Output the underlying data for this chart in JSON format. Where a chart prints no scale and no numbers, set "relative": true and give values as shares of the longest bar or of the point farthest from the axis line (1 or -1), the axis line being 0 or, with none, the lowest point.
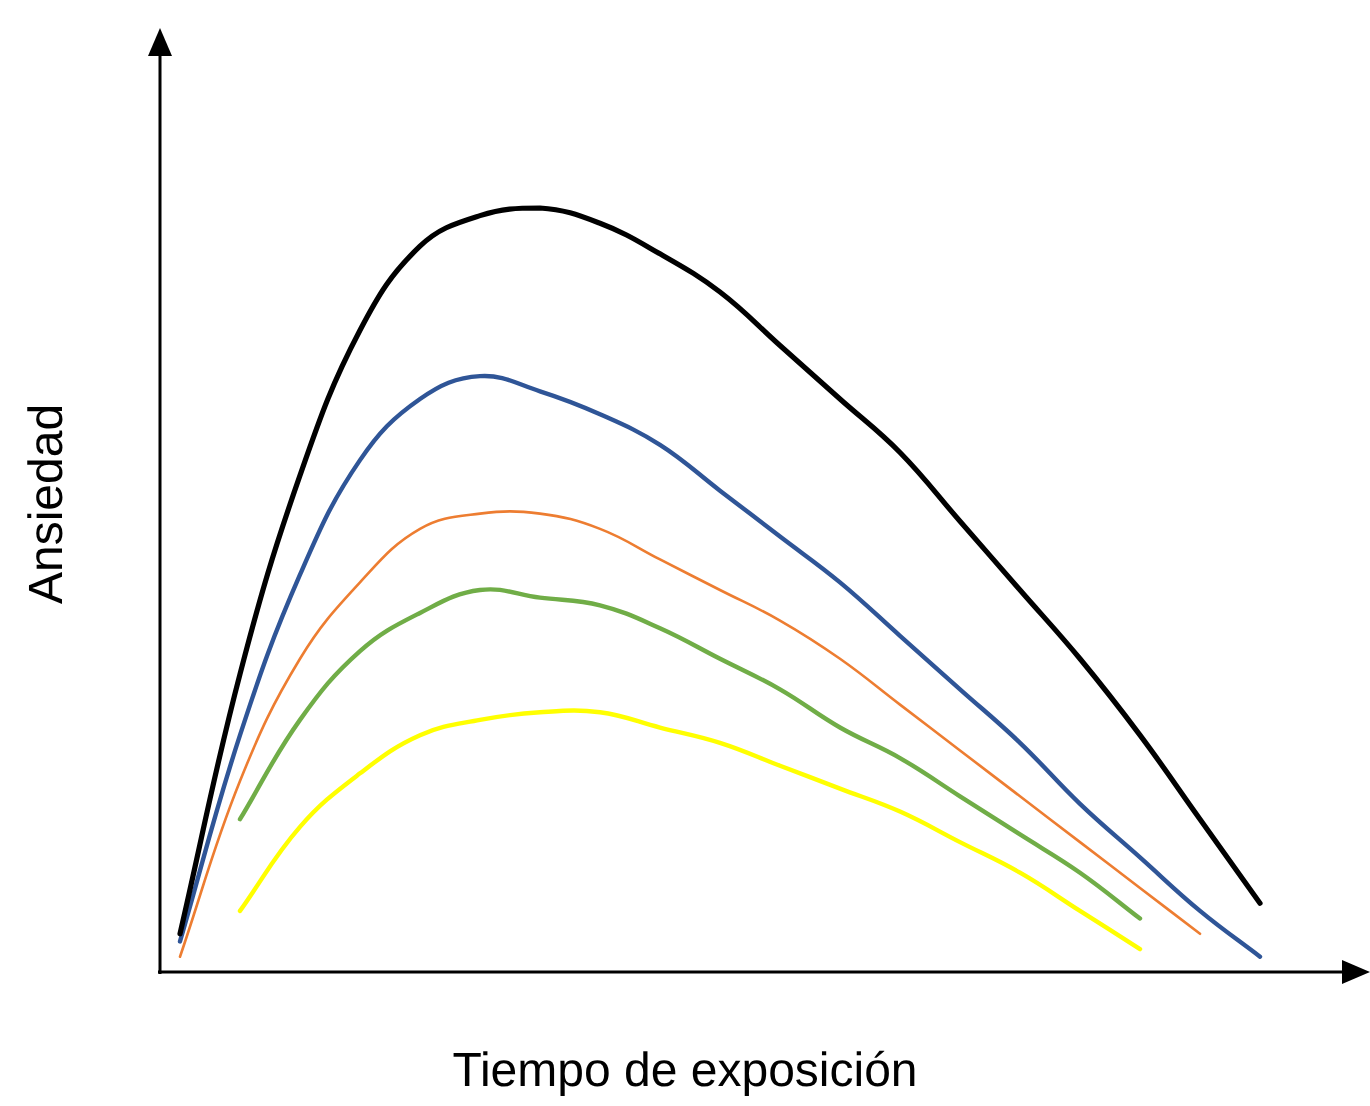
{
  "chart_data": {
    "type": "line",
    "relative": true,
    "xlabel": "Tiempo de exposición",
    "ylabel": "Ansiedad",
    "legend": false,
    "marker": "none",
    "line_style": "solid",
    "categories": [
      null,
      null,
      null,
      null,
      null,
      null,
      null,
      null,
      null,
      null,
      null,
      null,
      null,
      null,
      null,
      null,
      null,
      null,
      null,
      null
    ],
    "series": [
      {
        "color": "#000000",
        "values": [
          0.05,
          0.39,
          0.65,
          0.84,
          0.95,
          0.99,
          1,
          0.98,
          0.94,
          0.89,
          0.82,
          0.75,
          0.68,
          0.59,
          0.5,
          0.41,
          0.31,
          0.2,
          0.09,
          null
        ]
      },
      {
        "color": "#2f5597",
        "values": [
          0.04,
          0.31,
          0.52,
          0.67,
          0.75,
          0.78,
          0.76,
          0.73,
          0.69,
          0.63,
          0.57,
          0.51,
          0.44,
          0.37,
          0.3,
          0.22,
          0.15,
          0.08,
          0.02,
          null
        ]
      },
      {
        "color": "#ed7d31",
        "values": [
          0.02,
          0.25,
          0.41,
          0.51,
          0.58,
          0.6,
          0.6,
          0.58,
          0.54,
          0.5,
          0.46,
          0.41,
          0.35,
          0.29,
          0.23,
          0.17,
          0.11,
          0.05,
          null,
          null
        ]
      },
      {
        "color": "#70ad47",
        "values": [
          null,
          0.2,
          0.33,
          0.42,
          0.47,
          0.5,
          0.49,
          0.48,
          0.45,
          0.41,
          0.37,
          0.32,
          0.28,
          0.23,
          0.18,
          0.13,
          0.07,
          null,
          null,
          null
        ]
      },
      {
        "color": "#ffff00",
        "values": [
          null,
          0.08,
          0.19,
          0.26,
          0.31,
          0.33,
          0.34,
          0.34,
          0.32,
          0.3,
          0.27,
          0.24,
          0.21,
          0.17,
          0.13,
          0.08,
          0.03,
          null,
          null,
          null
        ]
      }
    ]
  }
}
